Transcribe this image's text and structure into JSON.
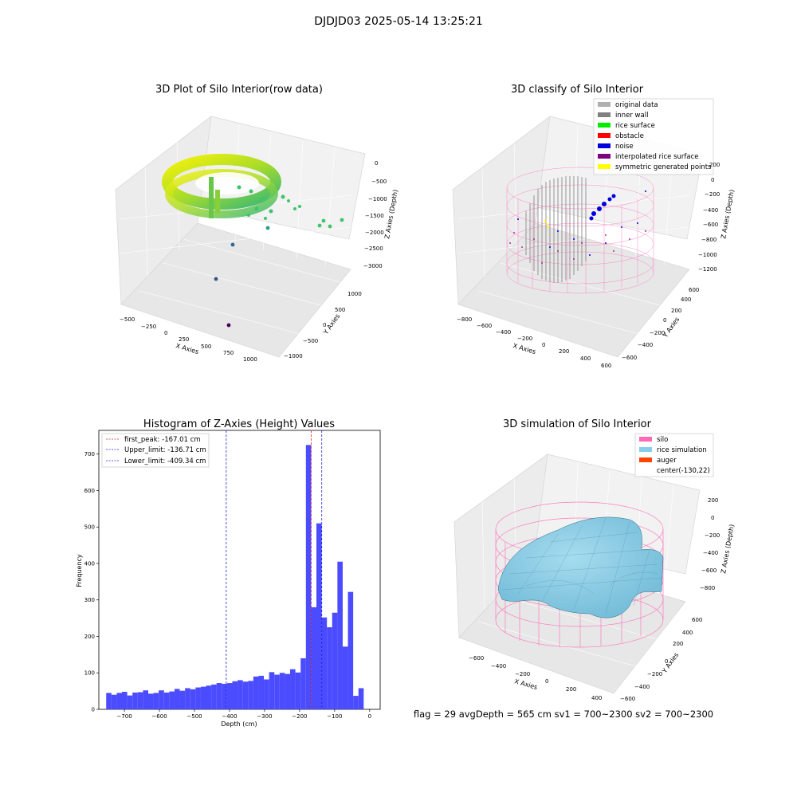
{
  "suptitle": "DJDJD03 2025-05-14 13:25:21",
  "status_line": "flag = 29  avgDepth = 565 cm  sv1 = 700~2300  sv2 = 700~2300",
  "colors": {
    "hist_bar": "#4b4bff",
    "peak_line": "#dd2222",
    "limit_line": "#2222dd",
    "original": "#b0b0b0",
    "inner_wall": "#808080",
    "rice_surface": "#00ee00",
    "obstacle": "#ff0000",
    "noise": "#0000dd",
    "interp": "#800080",
    "symmetric": "#ffff00",
    "silo": "#ff69b4",
    "rice_sim": "#87ceeb",
    "auger": "#ff4500"
  },
  "chart_data": [
    {
      "type": "scatter3d",
      "title": "3D Plot of Silo Interior(row data)",
      "xlabel": "X Axies",
      "ylabel": "Y Axies",
      "zlabel": "Z Axies (Depth)",
      "xticks": [
        "−500",
        "−250",
        "0",
        "250",
        "500",
        "750",
        "1000"
      ],
      "yticks": [
        "−1000",
        "−500",
        "0",
        "500",
        "1000"
      ],
      "zticks": [
        "0",
        "−500",
        "−1000",
        "−1500",
        "−2000",
        "−2500",
        "−3000"
      ]
    },
    {
      "type": "scatter3d",
      "title": "3D classify of Silo Interior",
      "xlabel": "X Axies",
      "ylabel": "Y Axies",
      "zlabel": "Z Axies (Depth)",
      "xticks": [
        "−800",
        "−600",
        "−400",
        "−200",
        "0",
        "200",
        "400",
        "600"
      ],
      "yticks": [
        "−600",
        "−400",
        "−200",
        "0",
        "200",
        "400",
        "600"
      ],
      "zticks": [
        "200",
        "0",
        "−200",
        "−400",
        "−600",
        "−800",
        "−1000",
        "−1200"
      ],
      "legend_position": "upper-right",
      "legend": [
        {
          "label": "original data",
          "color": "#b0b0b0"
        },
        {
          "label": "inner wall",
          "color": "#808080"
        },
        {
          "label": "rice surface",
          "color": "#00ee00"
        },
        {
          "label": "obstacle",
          "color": "#ff0000"
        },
        {
          "label": "noise",
          "color": "#0000dd"
        },
        {
          "label": "interpolated rice surface",
          "color": "#800080"
        },
        {
          "label": "symmetric generated points",
          "color": "#ffff00"
        }
      ]
    },
    {
      "type": "bar",
      "title": "Histogram of Z-Axies (Height) Values",
      "xlabel": "Depth (cm)",
      "ylabel": "Frequency",
      "xlim": [
        -773,
        30
      ],
      "ylim": [
        0,
        765
      ],
      "xticks": [
        -700,
        -600,
        -500,
        -400,
        -300,
        -200,
        -100,
        0
      ],
      "xtick_labels": [
        "−700",
        "−600",
        "−500",
        "−400",
        "−300",
        "−200",
        "−100",
        "0"
      ],
      "yticks": [
        0,
        100,
        200,
        300,
        400,
        500,
        600,
        700
      ],
      "ytick_labels": [
        "0",
        "100",
        "200",
        "300",
        "400",
        "500",
        "600",
        "700"
      ],
      "bin_start": -752,
      "bin_width": 15,
      "values": [
        45,
        40,
        45,
        48,
        38,
        46,
        47,
        52,
        43,
        45,
        52,
        46,
        49,
        56,
        51,
        58,
        55,
        60,
        62,
        65,
        68,
        72,
        70,
        72,
        77,
        80,
        76,
        78,
        90,
        92,
        82,
        102,
        95,
        100,
        97,
        110,
        101,
        140,
        725,
        280,
        510,
        252,
        225,
        265,
        405,
        172,
        322,
        37,
        58
      ],
      "legend_position": "upper-left",
      "vlines": [
        {
          "x": -167.01,
          "label": "first_peak: -167.01 cm",
          "color": "#dd2222"
        },
        {
          "x": -136.71,
          "label": "Upper_limit: -136.71 cm",
          "color": "#2222dd"
        },
        {
          "x": -409.34,
          "label": "Lower_limit: -409.34 cm",
          "color": "#2222dd"
        }
      ]
    },
    {
      "type": "surface3d",
      "title": "3D simulation of Silo Interior",
      "xlabel": "X Axies",
      "ylabel": "Y Axies",
      "zlabel": "Z Axies (Depth)",
      "xticks": [
        "−600",
        "−400",
        "−200",
        "0",
        "200",
        "400"
      ],
      "yticks": [
        "−600",
        "−400",
        "−200",
        "0",
        "200",
        "400",
        "600"
      ],
      "zticks": [
        "200",
        "0",
        "−200",
        "−400",
        "−600",
        "−800"
      ],
      "legend_position": "upper-right",
      "legend": [
        {
          "label": "silo",
          "color": "#ff69b4"
        },
        {
          "label": "rice simulation",
          "color": "#87ceeb"
        },
        {
          "label": "auger",
          "color": "#ff4500"
        },
        {
          "label": "center(-130,22)",
          "color": ""
        }
      ]
    }
  ]
}
